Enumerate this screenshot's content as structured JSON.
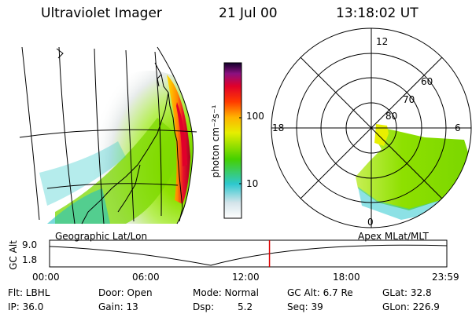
{
  "header": {
    "instrument": "Ultraviolet Imager",
    "date": "21 Jul 00",
    "time": "13:18:02 UT"
  },
  "colorbar": {
    "unit_label": "photon cm⁻²s⁻¹",
    "ticks": [
      "100",
      "10"
    ]
  },
  "polar_plot": {
    "mlt_labels": [
      "12",
      "18",
      "6",
      "0"
    ],
    "mlat_labels": [
      "60",
      "70",
      "80"
    ]
  },
  "panel_labels": {
    "left": "Geographic Lat/Lon",
    "right": "Apex MLat/MLT"
  },
  "altitude_plot": {
    "axis_label": "GC Alt",
    "y_ticks": [
      "9.0",
      "1.8"
    ],
    "x_ticks": [
      "00:00",
      "06:00",
      "12:00",
      "18:00",
      "23:59"
    ],
    "current_time_fraction": 0.5536,
    "marker_color": "#dd0000"
  },
  "info": {
    "filter": "Flt: LBHL",
    "ip": "IP: 36.0",
    "door": "Door: Open",
    "gain": "Gain: 13",
    "mode": "Mode: Normal",
    "dsp_label": "Dsp:",
    "dsp_value": "5.2",
    "gc_alt": "GC Alt: 6.7 Re",
    "seq": "Seq: 39",
    "glat": "GLat: 32.8",
    "glon": "GLon: 226.9"
  }
}
